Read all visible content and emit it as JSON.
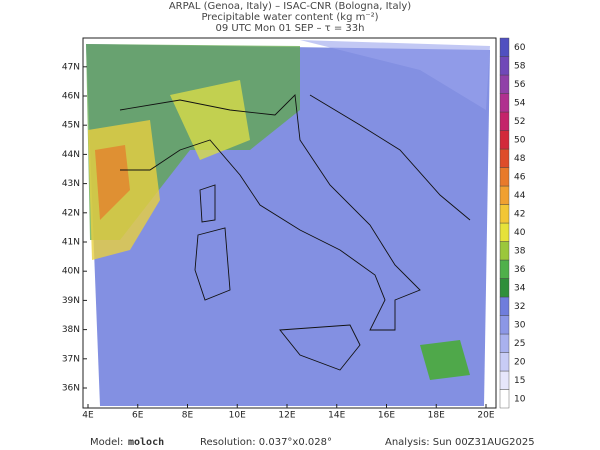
{
  "header": {
    "line1": "ARPAL (Genoa, Italy)  –  ISAC-CNR (Bologna, Italy)",
    "line2": "Precipitable water content (kg m⁻²)",
    "line3": "09 UTC Mon 01 SEP  –  τ = 33h"
  },
  "map": {
    "lat_labels": [
      "36N",
      "37N",
      "38N",
      "39N",
      "40N",
      "41N",
      "42N",
      "43N",
      "44N",
      "45N",
      "46N",
      "47N"
    ],
    "lon_labels": [
      "4E",
      "6E",
      "8E",
      "10E",
      "12E",
      "14E",
      "16E",
      "18E",
      "20E"
    ]
  },
  "colorbar": {
    "levels": [
      10,
      15,
      20,
      25,
      30,
      32,
      34,
      36,
      38,
      40,
      42,
      44,
      46,
      48,
      50,
      52,
      54,
      56,
      58,
      60
    ],
    "colors": [
      "#ffffff",
      "#e6e6fb",
      "#c8ccf5",
      "#a9b1ee",
      "#8c97e6",
      "#6f7ddc",
      "#2f8f3a",
      "#4fb04a",
      "#9bc73b",
      "#e6e23a",
      "#f2c635",
      "#f0a030",
      "#e87a2a",
      "#de4c2a",
      "#d22a3a",
      "#c4246a",
      "#b0308f",
      "#9040a8",
      "#7048b8",
      "#5050c0"
    ]
  },
  "footer": {
    "model_label": "Model:",
    "model": "moloch",
    "resolution": "Resolution: 0.037°x0.028°",
    "analysis": "Analysis: Sun 00Z31AUG2025"
  }
}
